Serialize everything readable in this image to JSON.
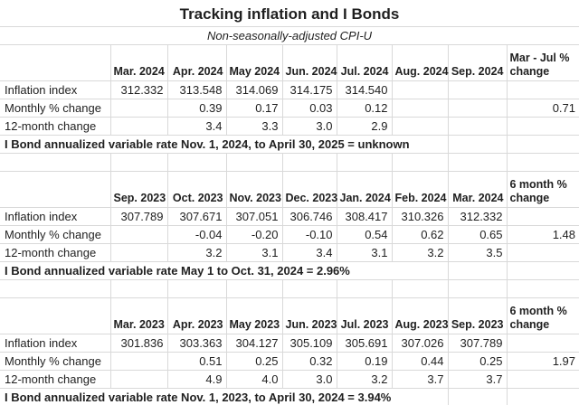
{
  "page_title": "Tracking inflation and I Bonds",
  "subtitle": "Non-seasonally-adjusted CPI-U",
  "colors": {
    "background": "#ffffff",
    "text": "#1f1f1f",
    "gridline": "#d9d9d9"
  },
  "chart_data": [
    {
      "type": "table",
      "month_columns": [
        "Mar. 2024",
        "Apr. 2024",
        "May 2024",
        "Jun. 2024",
        "Jul. 2024",
        "Aug. 2024",
        "Sep. 2024"
      ],
      "summary_header": "Mar - Jul %\nchange",
      "rows": [
        {
          "label": "Inflation index",
          "values": [
            "312.332",
            "313.548",
            "314.069",
            "314.175",
            "314.540",
            "",
            ""
          ],
          "summary": ""
        },
        {
          "label": "Monthly % change",
          "values": [
            "",
            "0.39",
            "0.17",
            "0.03",
            "0.12",
            "",
            ""
          ],
          "summary": "0.71"
        },
        {
          "label": "12-month change",
          "values": [
            "",
            "3.4",
            "3.3",
            "3.0",
            "2.9",
            "",
            ""
          ],
          "summary": ""
        }
      ],
      "note": "I Bond annualized variable rate Nov. 1, 2024, to April 30, 2025 = unknown"
    },
    {
      "type": "table",
      "month_columns": [
        "Sep. 2023",
        "Oct. 2023",
        "Nov. 2023",
        "Dec. 2023",
        "Jan. 2024",
        "Feb. 2024",
        "Mar. 2024"
      ],
      "summary_header": "6 month %\nchange",
      "rows": [
        {
          "label": "Inflation index",
          "values": [
            "307.789",
            "307.671",
            "307.051",
            "306.746",
            "308.417",
            "310.326",
            "312.332"
          ],
          "summary": ""
        },
        {
          "label": "Monthly % change",
          "values": [
            "",
            "-0.04",
            "-0.20",
            "-0.10",
            "0.54",
            "0.62",
            "0.65"
          ],
          "summary": "1.48"
        },
        {
          "label": "12-month change",
          "values": [
            "",
            "3.2",
            "3.1",
            "3.4",
            "3.1",
            "3.2",
            "3.5"
          ],
          "summary": ""
        }
      ],
      "note": "I Bond annualized variable rate May 1 to Oct. 31, 2024 = 2.96%"
    },
    {
      "type": "table",
      "month_columns": [
        "Mar. 2023",
        "Apr. 2023",
        "May 2023",
        "Jun. 2023",
        "Jul. 2023",
        "Aug. 2023",
        "Sep. 2023"
      ],
      "summary_header": "6 month %\nchange",
      "rows": [
        {
          "label": "Inflation index",
          "values": [
            "301.836",
            "303.363",
            "304.127",
            "305.109",
            "305.691",
            "307.026",
            "307.789"
          ],
          "summary": ""
        },
        {
          "label": "Monthly % change",
          "values": [
            "",
            "0.51",
            "0.25",
            "0.32",
            "0.19",
            "0.44",
            "0.25"
          ],
          "summary": "1.97"
        },
        {
          "label": "12-month change",
          "values": [
            "",
            "4.9",
            "4.0",
            "3.0",
            "3.2",
            "3.7",
            "3.7"
          ],
          "summary": ""
        }
      ],
      "note": "I Bond annualized variable rate Nov. 1, 2023, to April 30, 2024 = 3.94%"
    }
  ]
}
